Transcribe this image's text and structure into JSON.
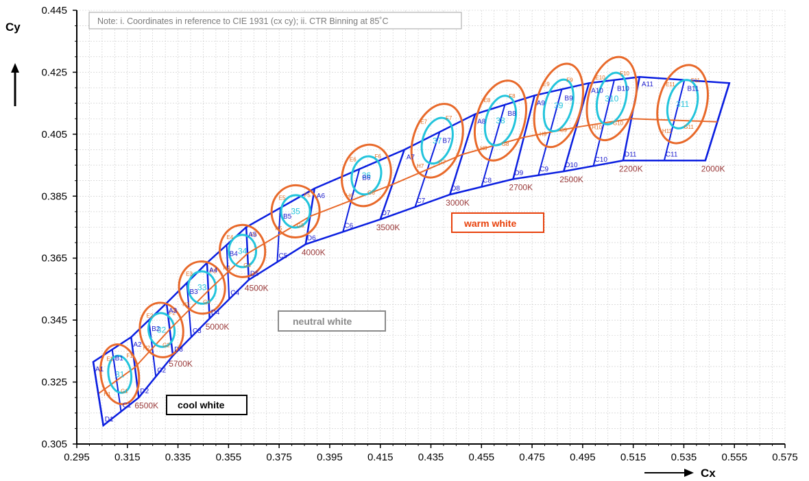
{
  "colors": {
    "grid": "#c8c8c8",
    "bin_outline": "#0a1ee0",
    "bin_text": "#1a1acc",
    "orange": "#e8692a",
    "cyan": "#22c4dc",
    "cct_text": "#9a3a3a",
    "note_text": "#7a7a7a"
  },
  "chart_data": {
    "type": "scatter",
    "x_axis": {
      "label": "Cx",
      "range": [
        0.295,
        0.575
      ],
      "ticks": [
        "0.295",
        "0.315",
        "0.335",
        "0.355",
        "0.375",
        "0.395",
        "0.415",
        "0.435",
        "0.455",
        "0.475",
        "0.495",
        "0.515",
        "0.535",
        "0.555",
        "0.575"
      ]
    },
    "y_axis": {
      "label": "Cy",
      "range": [
        0.305,
        0.445
      ],
      "ticks": [
        "0.305",
        "0.325",
        "0.345",
        "0.365",
        "0.385",
        "0.405",
        "0.425",
        "0.445"
      ]
    },
    "grid": true,
    "note": "Note: i. Coordinates in reference to CIE 1931 (cx cy); ii. CTR Binning at 85˚C",
    "zones": [
      {
        "label": "cool white",
        "color": "#000000"
      },
      {
        "label": "neutral white",
        "color": "#8a8a8a"
      },
      {
        "label": "warm white",
        "color": "#e8400a"
      }
    ],
    "bins": [
      {
        "name": "31",
        "cct": "6500K",
        "center": [
          0.312,
          0.3275
        ],
        "top": [
          0.3015,
          0.3315,
          0.3165,
          0.3395
        ],
        "bottom": [
          0.3055,
          0.311,
          0.3195,
          0.32
        ]
      },
      {
        "name": "32",
        "cct": "5700K",
        "center": [
          0.3285,
          0.3418
        ],
        "top": [
          0.3165,
          0.3395,
          0.3305,
          0.3505
        ],
        "bottom": [
          0.3195,
          0.32,
          0.333,
          0.3335
        ]
      },
      {
        "name": "33",
        "cct": "5000K",
        "center": [
          0.3445,
          0.3555
        ],
        "top": [
          0.3305,
          0.3505,
          0.3465,
          0.3635
        ],
        "bottom": [
          0.333,
          0.3335,
          0.3475,
          0.3455
        ]
      },
      {
        "name": "34",
        "cct": "4500K",
        "center": [
          0.3605,
          0.3673
        ],
        "top": [
          0.3465,
          0.3635,
          0.362,
          0.375
        ],
        "bottom": [
          0.3475,
          0.3455,
          0.363,
          0.358
        ]
      },
      {
        "name": "35",
        "cct": "4000K",
        "center": [
          0.3815,
          0.3801
        ],
        "top": [
          0.362,
          0.375,
          0.389,
          0.3875
        ],
        "bottom": [
          0.363,
          0.358,
          0.3855,
          0.3695
        ]
      },
      {
        "name": "36",
        "cct": "3500K",
        "center": [
          0.4095,
          0.3917
        ],
        "top": [
          0.389,
          0.3875,
          0.4245,
          0.4
        ],
        "bottom": [
          0.3855,
          0.3695,
          0.415,
          0.3775
        ]
      },
      {
        "name": "37",
        "cct": "3000K",
        "center": [
          0.4375,
          0.4029
        ],
        "top": [
          0.4245,
          0.4,
          0.4525,
          0.4115
        ],
        "bottom": [
          0.415,
          0.3775,
          0.4425,
          0.3855
        ]
      },
      {
        "name": "38",
        "cct": "2700K",
        "center": [
          0.4625,
          0.4094
        ],
        "top": [
          0.4525,
          0.4115,
          0.476,
          0.4175
        ],
        "bottom": [
          0.4425,
          0.3855,
          0.4675,
          0.3905
        ]
      },
      {
        "name": "39",
        "cct": "2500K",
        "center": [
          0.4855,
          0.4143
        ],
        "top": [
          0.476,
          0.4175,
          0.4975,
          0.4215
        ],
        "bottom": [
          0.4675,
          0.3905,
          0.4875,
          0.393
        ]
      },
      {
        "name": "310",
        "cct": "2200K",
        "center": [
          0.5065,
          0.4165
        ],
        "top": [
          0.4975,
          0.4215,
          0.5175,
          0.4235
        ],
        "bottom": [
          0.4875,
          0.393,
          0.511,
          0.3965
        ]
      },
      {
        "name": "311",
        "cct": "2000K",
        "center": [
          0.5345,
          0.4147
        ],
        "top": [
          0.5175,
          0.4235,
          0.553,
          0.4215
        ],
        "bottom": [
          0.511,
          0.3965,
          0.5435,
          0.3965
        ]
      }
    ],
    "bin_labels": [
      [
        "A1",
        "B1",
        "C1",
        "D1",
        "E1",
        "F1",
        "G1",
        "H1"
      ],
      [
        "A2",
        "B2",
        "C2",
        "D2",
        "E2",
        "F2",
        "G2",
        "H2"
      ],
      [
        "A3",
        "B3",
        "C3",
        "D3",
        "E3",
        "F3",
        "G3",
        "H3"
      ],
      [
        "A4",
        "B4",
        "C4",
        "D4",
        "E4",
        "F4",
        "G4",
        "H4"
      ],
      [
        "A5",
        "B5",
        "C5",
        "D5",
        "E5",
        "F5",
        "G5",
        "H5"
      ],
      [
        "A6",
        "B6",
        "C6",
        "D6",
        "E6",
        "F6",
        "G6",
        "H6"
      ],
      [
        "A7",
        "B7",
        "C7",
        "D7",
        "E7",
        "F7",
        "G7",
        "H7"
      ],
      [
        "A8",
        "B8",
        "C8",
        "D8",
        "E8",
        "F8",
        "G8",
        "H8"
      ],
      [
        "A9",
        "B9",
        "C9",
        "D9",
        "E9",
        "F9",
        "G9",
        "H9"
      ],
      [
        "A10",
        "B10",
        "C10",
        "D10",
        "E10",
        "F10",
        "G10",
        "H10"
      ],
      [
        "A11",
        "B11",
        "C11",
        "D11",
        "E11",
        "F11",
        "G11",
        "H11"
      ]
    ]
  }
}
